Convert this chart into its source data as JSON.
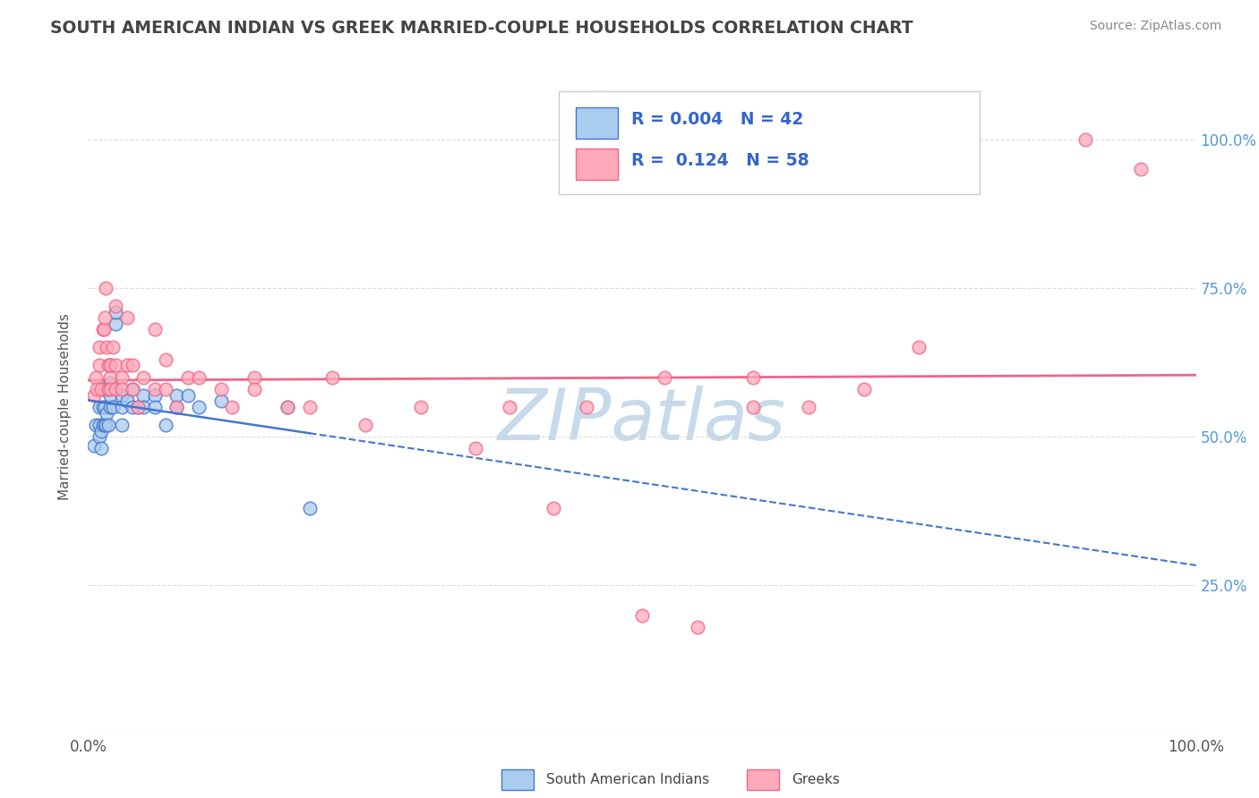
{
  "title": "SOUTH AMERICAN INDIAN VS GREEK MARRIED-COUPLE HOUSEHOLDS CORRELATION CHART",
  "source": "Source: ZipAtlas.com",
  "ylabel": "Married-couple Households",
  "legend_label1": "South American Indians",
  "legend_label2": "Greeks",
  "r1": "0.004",
  "n1": "42",
  "r2": "0.124",
  "n2": "58",
  "color1": "#aaccee",
  "color2": "#ffaabb",
  "trendline1_color": "#4477cc",
  "trendline2_color": "#ee6688",
  "watermark_color": "#c8daea",
  "ytick_labels": [
    "100.0%",
    "75.0%",
    "50.0%",
    "25.0%"
  ],
  "ytick_values": [
    1.0,
    0.75,
    0.5,
    0.25
  ],
  "blue_x": [
    0.005,
    0.007,
    0.01,
    0.01,
    0.01,
    0.012,
    0.012,
    0.013,
    0.013,
    0.014,
    0.015,
    0.015,
    0.016,
    0.016,
    0.017,
    0.018,
    0.02,
    0.02,
    0.02,
    0.02,
    0.022,
    0.025,
    0.025,
    0.03,
    0.03,
    0.03,
    0.035,
    0.04,
    0.04,
    0.045,
    0.05,
    0.05,
    0.06,
    0.06,
    0.07,
    0.08,
    0.08,
    0.09,
    0.1,
    0.12,
    0.18,
    0.2
  ],
  "blue_y": [
    0.485,
    0.52,
    0.55,
    0.52,
    0.5,
    0.48,
    0.51,
    0.52,
    0.55,
    0.58,
    0.52,
    0.55,
    0.58,
    0.52,
    0.54,
    0.52,
    0.55,
    0.57,
    0.59,
    0.62,
    0.55,
    0.69,
    0.71,
    0.52,
    0.57,
    0.55,
    0.56,
    0.55,
    0.58,
    0.55,
    0.57,
    0.55,
    0.57,
    0.55,
    0.52,
    0.55,
    0.57,
    0.57,
    0.55,
    0.56,
    0.55,
    0.38
  ],
  "pink_x": [
    0.005,
    0.007,
    0.008,
    0.01,
    0.01,
    0.012,
    0.013,
    0.014,
    0.015,
    0.016,
    0.017,
    0.018,
    0.018,
    0.02,
    0.02,
    0.02,
    0.022,
    0.025,
    0.025,
    0.025,
    0.03,
    0.03,
    0.035,
    0.035,
    0.04,
    0.04,
    0.045,
    0.05,
    0.06,
    0.06,
    0.07,
    0.07,
    0.08,
    0.09,
    0.1,
    0.12,
    0.13,
    0.15,
    0.15,
    0.18,
    0.2,
    0.22,
    0.25,
    0.3,
    0.35,
    0.38,
    0.42,
    0.45,
    0.5,
    0.52,
    0.55,
    0.6,
    0.6,
    0.65,
    0.7,
    0.75,
    0.9,
    0.95
  ],
  "pink_y": [
    0.57,
    0.6,
    0.58,
    0.62,
    0.65,
    0.58,
    0.68,
    0.68,
    0.7,
    0.75,
    0.65,
    0.62,
    0.58,
    0.6,
    0.58,
    0.62,
    0.65,
    0.62,
    0.58,
    0.72,
    0.6,
    0.58,
    0.7,
    0.62,
    0.62,
    0.58,
    0.55,
    0.6,
    0.68,
    0.58,
    0.63,
    0.58,
    0.55,
    0.6,
    0.6,
    0.58,
    0.55,
    0.6,
    0.58,
    0.55,
    0.55,
    0.6,
    0.52,
    0.55,
    0.48,
    0.55,
    0.38,
    0.55,
    0.2,
    0.6,
    0.18,
    0.55,
    0.6,
    0.55,
    0.58,
    0.65,
    1.0,
    0.95
  ]
}
